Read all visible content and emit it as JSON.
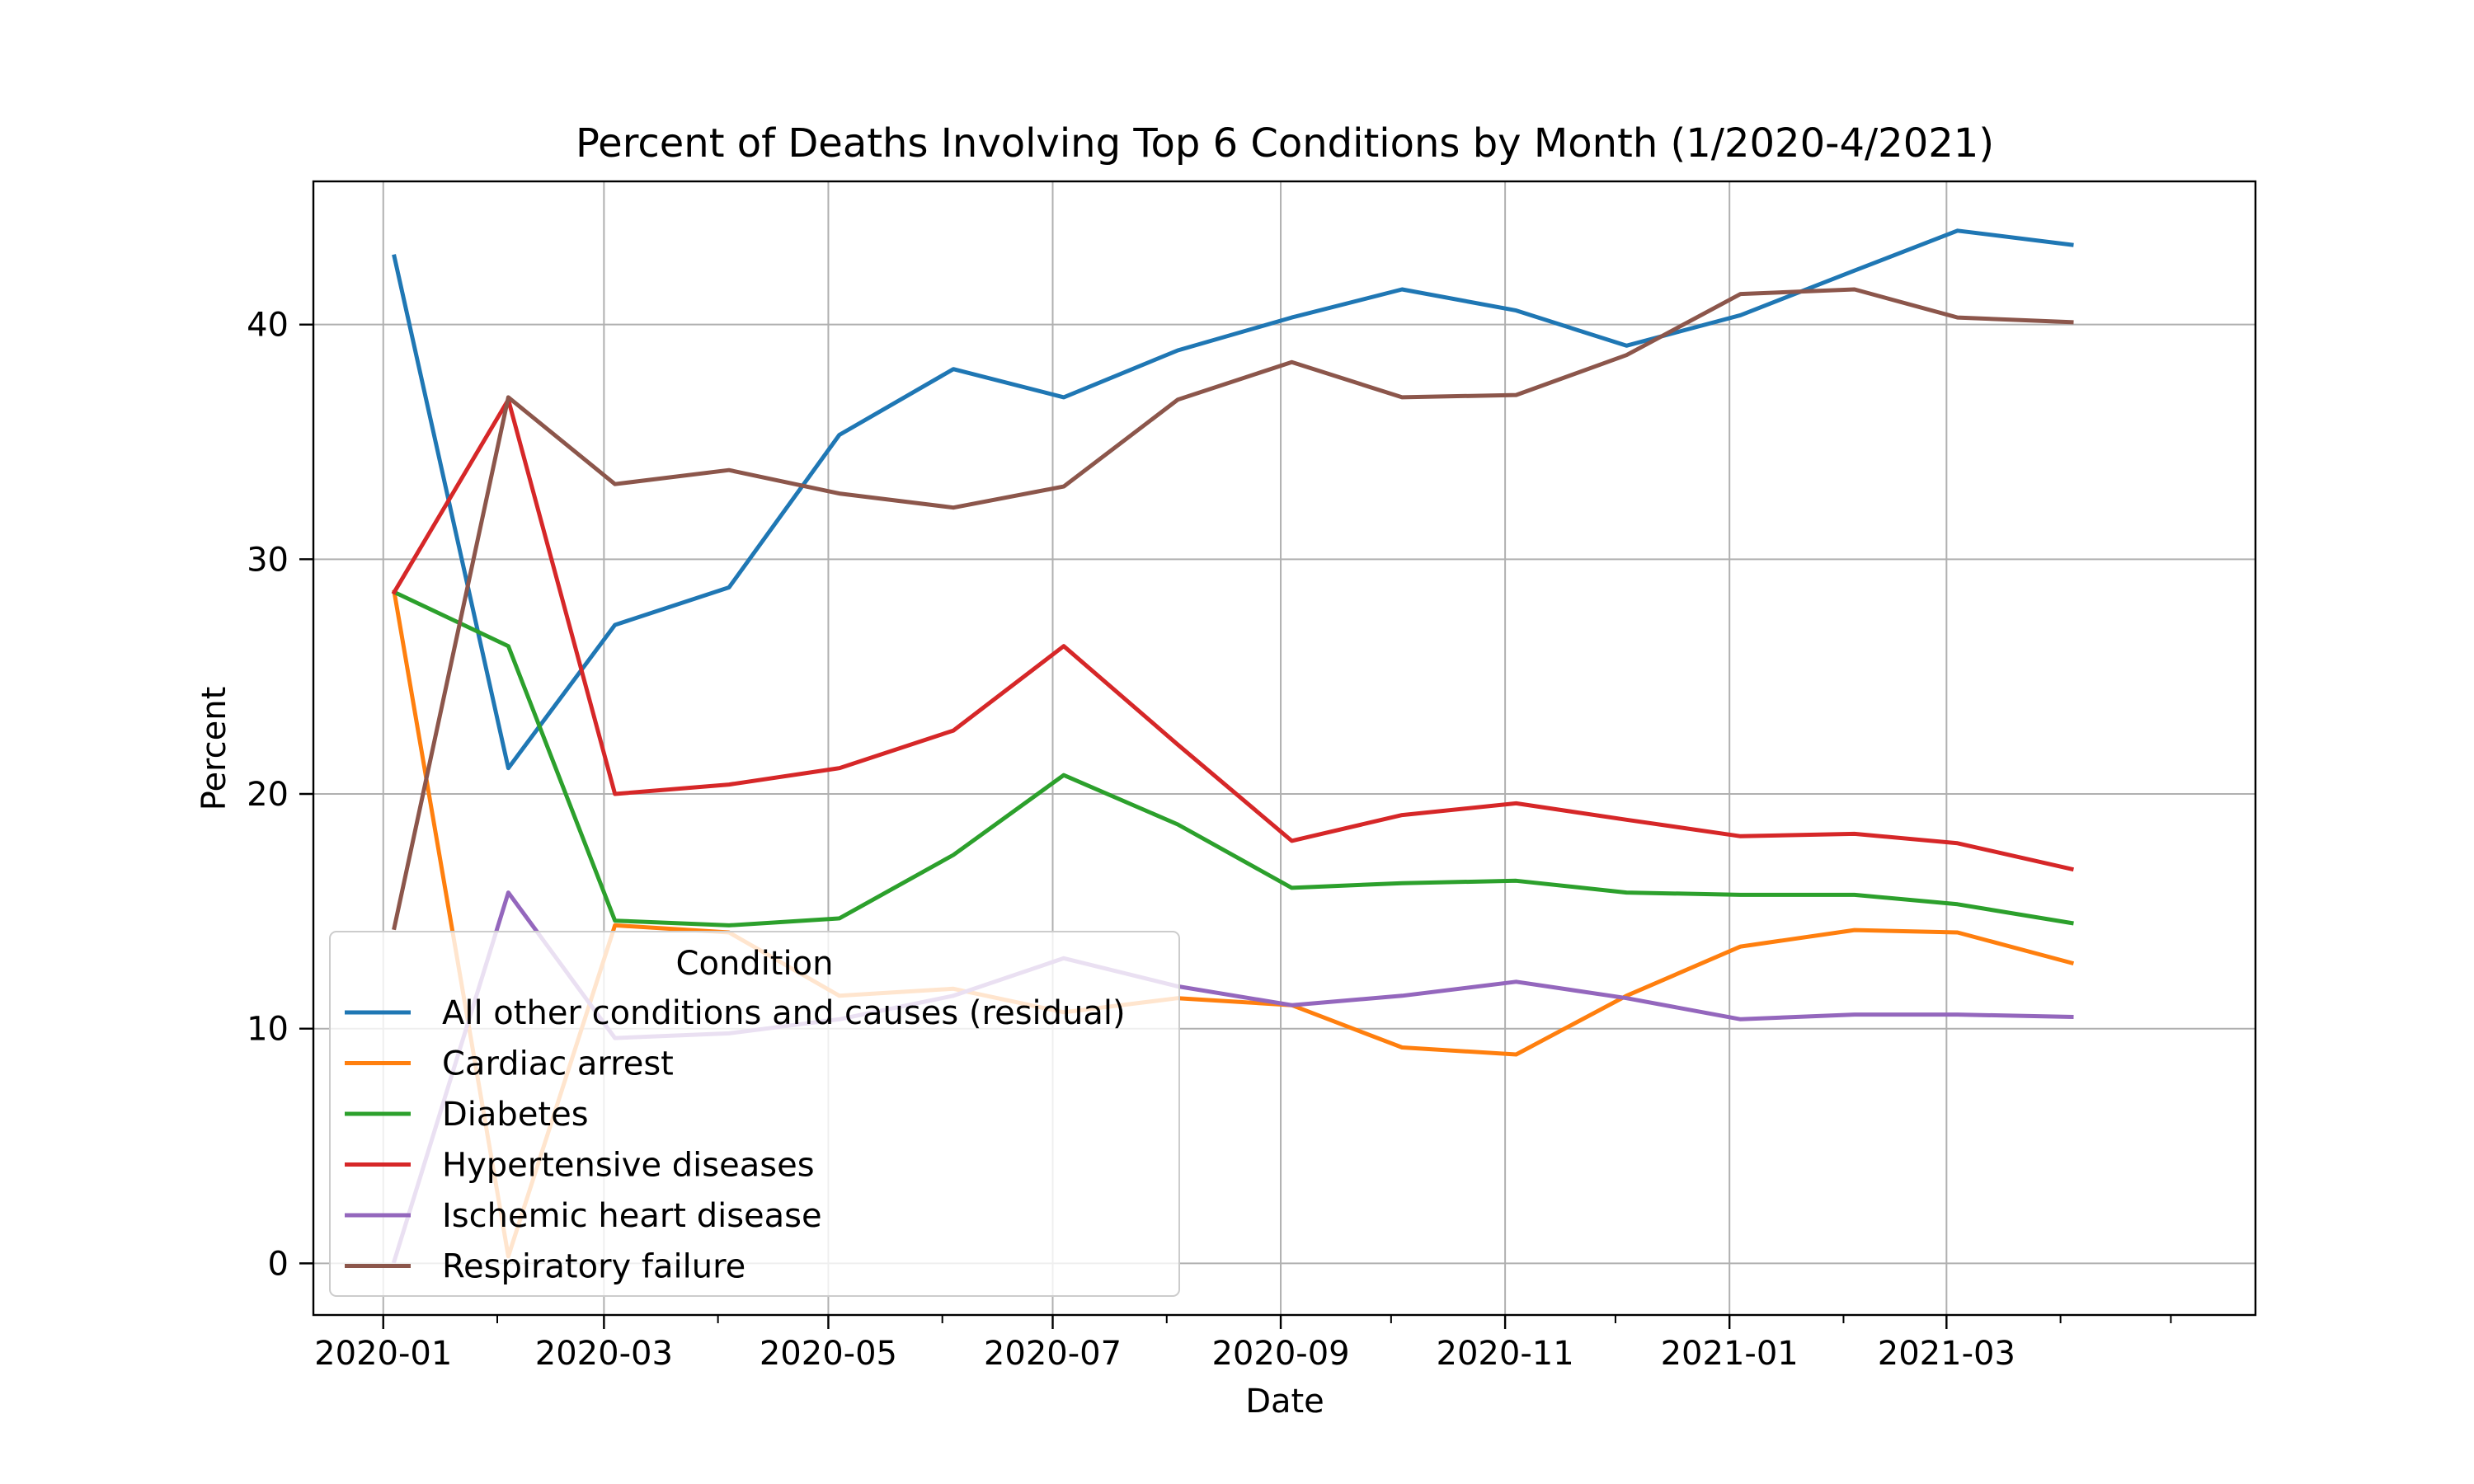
{
  "chart_data": {
    "type": "line",
    "title": "Percent of Deaths Involving Top 6 Conditions by Month (1/2020-4/2021)",
    "xlabel": "Date",
    "ylabel": "Percent",
    "x": [
      "2020-01-04",
      "2020-02-04",
      "2020-03-04",
      "2020-04-04",
      "2020-05-04",
      "2020-06-04",
      "2020-07-04",
      "2020-08-04",
      "2020-09-04",
      "2020-10-04",
      "2020-11-04",
      "2020-12-04",
      "2021-01-04",
      "2021-02-04",
      "2021-03-04",
      "2021-04-04"
    ],
    "xticks": [
      "2020-01",
      "2020-03",
      "2020-05",
      "2020-07",
      "2020-09",
      "2020-11",
      "2021-01",
      "2021-03"
    ],
    "xlim": [
      "2019-12-13",
      "2021-05-24"
    ],
    "yticks": [
      0,
      10,
      20,
      30,
      40
    ],
    "ylim": [
      -2.2,
      46.1
    ],
    "grid": true,
    "legend_title": "Condition",
    "legend_position": "lower left",
    "series": [
      {
        "name": "All other conditions and causes (residual)",
        "color": "#1f77b4",
        "values": [
          42.9,
          21.1,
          27.2,
          28.8,
          35.3,
          38.1,
          36.9,
          38.9,
          40.3,
          41.5,
          40.6,
          39.1,
          40.4,
          42.3,
          44.0,
          43.4
        ]
      },
      {
        "name": "Cardiac arrest",
        "color": "#ff7f0e",
        "values": [
          28.6,
          0.3,
          14.4,
          14.1,
          11.4,
          11.7,
          10.7,
          11.3,
          11.0,
          9.2,
          8.9,
          11.4,
          13.5,
          14.2,
          14.1,
          12.8
        ]
      },
      {
        "name": "Diabetes",
        "color": "#2ca02c",
        "values": [
          28.6,
          26.3,
          14.6,
          14.4,
          14.7,
          17.4,
          20.8,
          18.7,
          16.0,
          16.2,
          16.3,
          15.8,
          15.7,
          15.7,
          15.3,
          14.5
        ]
      },
      {
        "name": "Hypertensive diseases",
        "color": "#d62728",
        "values": [
          28.6,
          36.8,
          20.0,
          20.4,
          21.1,
          22.7,
          26.3,
          22.1,
          18.0,
          19.1,
          19.6,
          18.9,
          18.2,
          18.3,
          17.9,
          16.8
        ]
      },
      {
        "name": "Ischemic heart disease",
        "color": "#9467bd",
        "values": [
          0.1,
          15.8,
          9.6,
          9.8,
          10.4,
          11.4,
          13.0,
          11.8,
          11.0,
          11.4,
          12.0,
          11.3,
          10.4,
          10.6,
          10.6,
          10.5
        ]
      },
      {
        "name": "Respiratory failure",
        "color": "#8c564b",
        "values": [
          14.3,
          36.9,
          33.2,
          33.8,
          32.8,
          32.2,
          33.1,
          36.8,
          38.4,
          36.9,
          37.0,
          38.7,
          41.3,
          41.5,
          40.3,
          40.1
        ]
      }
    ]
  }
}
